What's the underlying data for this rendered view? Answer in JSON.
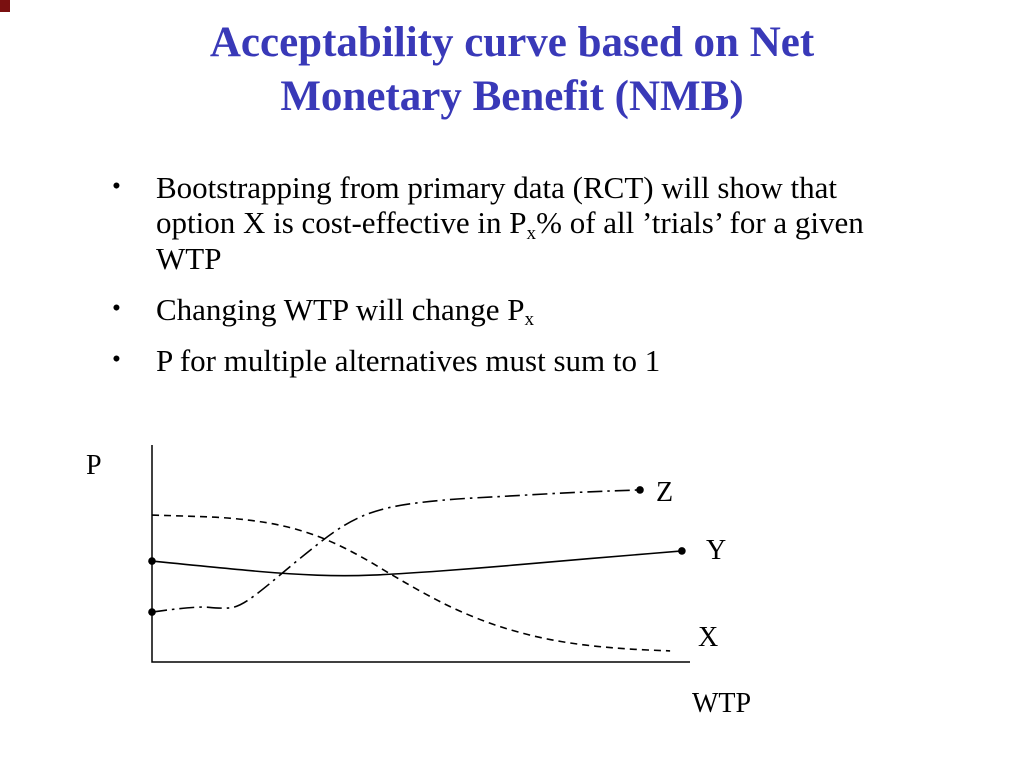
{
  "slide": {
    "title_lines": [
      "Acceptability curve based on Net",
      "Monetary Benefit (NMB)"
    ],
    "title_color": "#3939b8",
    "bullet_glyph": "•",
    "bullets": [
      {
        "segments": [
          {
            "text": "Bootstrapping from primary data (RCT) will show that option X is cost-effective in P"
          },
          {
            "text": "x",
            "sub": true
          },
          {
            "text": "% of all ’trials’ for a given WTP"
          }
        ]
      },
      {
        "segments": [
          {
            "text": "Changing WTP will change P"
          },
          {
            "text": "x",
            "sub": true
          }
        ]
      },
      {
        "segments": [
          {
            "text": "P for multiple alternatives must sum to 1"
          }
        ]
      }
    ]
  },
  "chart_data": {
    "type": "line",
    "title": "",
    "xlabel": "WTP",
    "ylabel": "P",
    "grid": false,
    "axes": {
      "x_ticks": [],
      "y_ticks": [],
      "x_range_shown": "unlabeled",
      "y_range_shown": "unlabeled"
    },
    "ylim": [
      0,
      1
    ],
    "legend": "inline labels at right ends of curves",
    "line_color": "#000000",
    "series": [
      {
        "name": "X",
        "line_style": "dashed",
        "points": [
          [
            0.0,
            0.677
          ],
          [
            0.075,
            0.672
          ],
          [
            0.145,
            0.664
          ],
          [
            0.21,
            0.645
          ],
          [
            0.27,
            0.613
          ],
          [
            0.33,
            0.56
          ],
          [
            0.39,
            0.485
          ],
          [
            0.45,
            0.395
          ],
          [
            0.51,
            0.31
          ],
          [
            0.57,
            0.235
          ],
          [
            0.64,
            0.166
          ],
          [
            0.72,
            0.111
          ],
          [
            0.8,
            0.078
          ],
          [
            0.88,
            0.06
          ],
          [
            0.963,
            0.051
          ]
        ],
        "marker_points": []
      },
      {
        "name": "Y",
        "line_style": "solid",
        "points": [
          [
            0.0,
            0.465
          ],
          [
            0.145,
            0.429
          ],
          [
            0.255,
            0.405
          ],
          [
            0.36,
            0.395
          ],
          [
            0.461,
            0.406
          ],
          [
            0.61,
            0.433
          ],
          [
            0.758,
            0.465
          ],
          [
            0.87,
            0.488
          ],
          [
            0.985,
            0.512
          ]
        ],
        "marker_points": [
          [
            0.0,
            0.465
          ],
          [
            0.985,
            0.512
          ]
        ]
      },
      {
        "name": "Z",
        "line_style": "dashdot",
        "points": [
          [
            0.0,
            0.23
          ],
          [
            0.08,
            0.258
          ],
          [
            0.13,
            0.246
          ],
          [
            0.16,
            0.253
          ],
          [
            0.201,
            0.323
          ],
          [
            0.275,
            0.479
          ],
          [
            0.359,
            0.641
          ],
          [
            0.433,
            0.714
          ],
          [
            0.535,
            0.747
          ],
          [
            0.665,
            0.765
          ],
          [
            0.796,
            0.783
          ],
          [
            0.907,
            0.793
          ]
        ],
        "marker_points": [
          [
            0.0,
            0.23
          ],
          [
            0.907,
            0.793
          ]
        ]
      }
    ]
  }
}
